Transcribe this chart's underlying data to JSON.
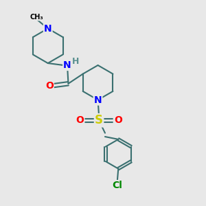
{
  "bg_color": "#e8e8e8",
  "atom_colors": {
    "N": "#0000ff",
    "O": "#ff0000",
    "S": "#cccc00",
    "Cl": "#008800",
    "C": "#000000",
    "H": "#5a9090"
  },
  "bond_color": "#3a7070",
  "bond_width": 1.5,
  "label_fontsize": 9,
  "label_bg": "#e8e8e8"
}
